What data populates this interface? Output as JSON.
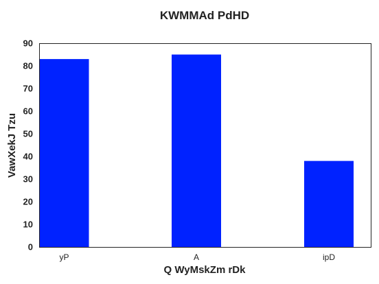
{
  "chart_data": {
    "type": "bar",
    "title": "KWMMAd PdHD",
    "xlabel": "Q WyMskZm rDk",
    "ylabel": "VawXekJ Tzu",
    "categories": [
      "yP",
      "A",
      "ipD"
    ],
    "values": [
      83,
      85,
      38
    ],
    "ylim": [
      0,
      90
    ],
    "yticks": [
      0,
      10,
      20,
      30,
      40,
      50,
      60,
      70,
      80,
      90
    ],
    "grid": false,
    "legend": "none",
    "bar_color": "#0022ff"
  }
}
